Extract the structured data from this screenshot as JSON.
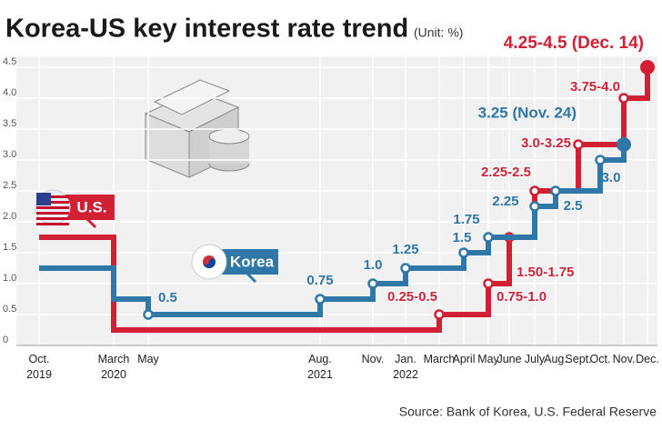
{
  "chart_data": {
    "type": "step-line",
    "title": "Korea-US key interest rate trend",
    "subtitle": "(Unit: %)",
    "source": "Source: Bank of Korea, U.S. Federal Reserve",
    "categories": [
      "Oct.\n2019",
      "March\n2020",
      "May",
      "Aug.\n2021",
      "Nov.",
      "Jan.\n2022",
      "March",
      "April",
      "May",
      "June",
      "July",
      "Aug.",
      "Sept.",
      "Oct.",
      "Nov.",
      "Dec."
    ],
    "series": [
      {
        "name": "U.S.",
        "color": "#d11f33",
        "values": [
          1.75,
          0.25,
          0.25,
          0.25,
          0.25,
          0.25,
          0.5,
          0.5,
          1.0,
          1.75,
          2.5,
          2.5,
          3.25,
          3.25,
          4.0,
          4.5
        ],
        "value_labels": [
          null,
          null,
          null,
          null,
          null,
          null,
          "0.25-0.5",
          null,
          "0.75-1.0",
          "1.50-1.75",
          "2.25-2.5",
          null,
          "3.0-3.25",
          null,
          "3.75-4.0",
          "4.25-4.5 (Dec. 14)"
        ]
      },
      {
        "name": "Korea",
        "color": "#2f77a6",
        "values": [
          1.25,
          0.75,
          0.5,
          0.75,
          1.0,
          1.25,
          1.25,
          1.5,
          1.75,
          1.75,
          2.25,
          2.5,
          2.5,
          3.0,
          3.25,
          null
        ],
        "value_labels": [
          null,
          null,
          "0.5",
          "0.75",
          "1.0",
          "1.25",
          null,
          "1.5",
          "1.75",
          null,
          "2.25",
          "2.5",
          null,
          "3.0",
          "3.25 (Nov. 24)",
          null
        ]
      }
    ],
    "ylim": [
      0,
      4.5
    ],
    "yticks": [
      0,
      0.5,
      {
        "value": 1,
        "label": "1.0"
      },
      1.5,
      {
        "value": 2,
        "label": "2.0"
      },
      2.5,
      {
        "value": 3,
        "label": "3.0"
      },
      3.5,
      {
        "value": 4,
        "label": "4.0"
      },
      4.5
    ],
    "grid": true
  }
}
